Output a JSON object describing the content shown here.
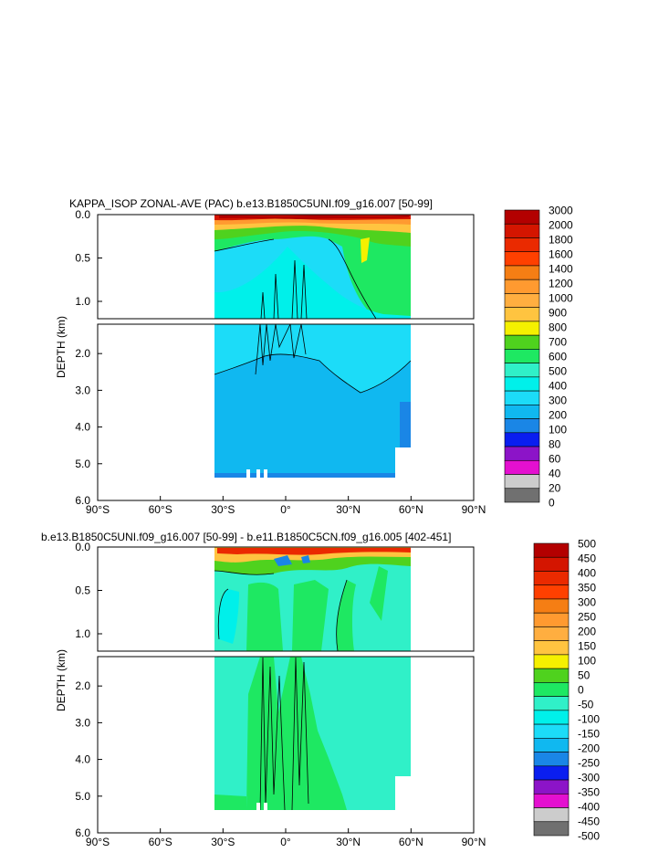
{
  "chart_data": [
    {
      "type": "heatmap",
      "title": "KAPPA_ISOP ZONAL-AVE (PAC) b.e13.B1850C5UNI.f09_g16.007 [50-99]",
      "ylabel": "DEPTH (km)",
      "xlabel": "",
      "x_ticks": [
        "90°S",
        "60°S",
        "30°S",
        "0°",
        "30°N",
        "60°N",
        "90°N"
      ],
      "xlim": [
        -90,
        90
      ],
      "y_ticks_upper": [
        "0.0",
        "0.5",
        "1.0"
      ],
      "y_ticks_lower": [
        "2.0",
        "3.0",
        "4.0",
        "5.0",
        "6.0"
      ],
      "ylim_upper": [
        0,
        1.2
      ],
      "ylim_lower": [
        1.2,
        6.0
      ],
      "data_extent": {
        "lat": [
          -34,
          66
        ],
        "depth_bottom": 5.4
      },
      "colorbar_labels": [
        "3000",
        "2000",
        "1800",
        "1600",
        "1400",
        "1200",
        "1000",
        "900",
        "800",
        "700",
        "600",
        "500",
        "400",
        "300",
        "200",
        "100",
        "80",
        "60",
        "40",
        "20",
        "0"
      ],
      "colorbar_colors": [
        "#b30000",
        "#d41500",
        "#ea2a00",
        "#ff4000",
        "#f57e14",
        "#ff9a30",
        "#ffae40",
        "#ffc440",
        "#f5f000",
        "#4fd21e",
        "#1ee862",
        "#30f0c8",
        "#00f0ea",
        "#1cdcf8",
        "#10b8f0",
        "#1a86e6",
        "#0a1ef0",
        "#8c14c8",
        "#e410d0",
        "#cccccc",
        "#707070"
      ]
    },
    {
      "type": "heatmap",
      "title": "b.e13.B1850C5UNI.f09_g16.007 [50-99] - b.e11.B1850C5CN.f09_g16.005 [402-451]",
      "ylabel": "DEPTH (km)",
      "xlabel": "",
      "x_ticks": [
        "90°S",
        "60°S",
        "30°S",
        "0°",
        "30°N",
        "60°N",
        "90°N"
      ],
      "xlim": [
        -90,
        90
      ],
      "y_ticks_upper": [
        "0.0",
        "0.5",
        "1.0"
      ],
      "y_ticks_lower": [
        "2.0",
        "3.0",
        "4.0",
        "5.0",
        "6.0"
      ],
      "ylim_upper": [
        0,
        1.2
      ],
      "ylim_lower": [
        1.2,
        6.0
      ],
      "data_extent": {
        "lat": [
          -34,
          66
        ],
        "depth_bottom": 5.4
      },
      "colorbar_labels": [
        "500",
        "450",
        "400",
        "350",
        "300",
        "250",
        "200",
        "150",
        "100",
        "50",
        "0",
        "-50",
        "-100",
        "-150",
        "-200",
        "-250",
        "-300",
        "-350",
        "-400",
        "-450",
        "-500"
      ],
      "colorbar_colors": [
        "#b30000",
        "#d41500",
        "#ea2a00",
        "#ff4000",
        "#f57e14",
        "#ff9a30",
        "#ffae40",
        "#ffc440",
        "#f5f000",
        "#4fd21e",
        "#1ee862",
        "#30f0c8",
        "#00f0ea",
        "#1cdcf8",
        "#10b8f0",
        "#1a86e6",
        "#0a1ef0",
        "#8c14c8",
        "#e410d0",
        "#cccccc",
        "#707070"
      ]
    }
  ]
}
